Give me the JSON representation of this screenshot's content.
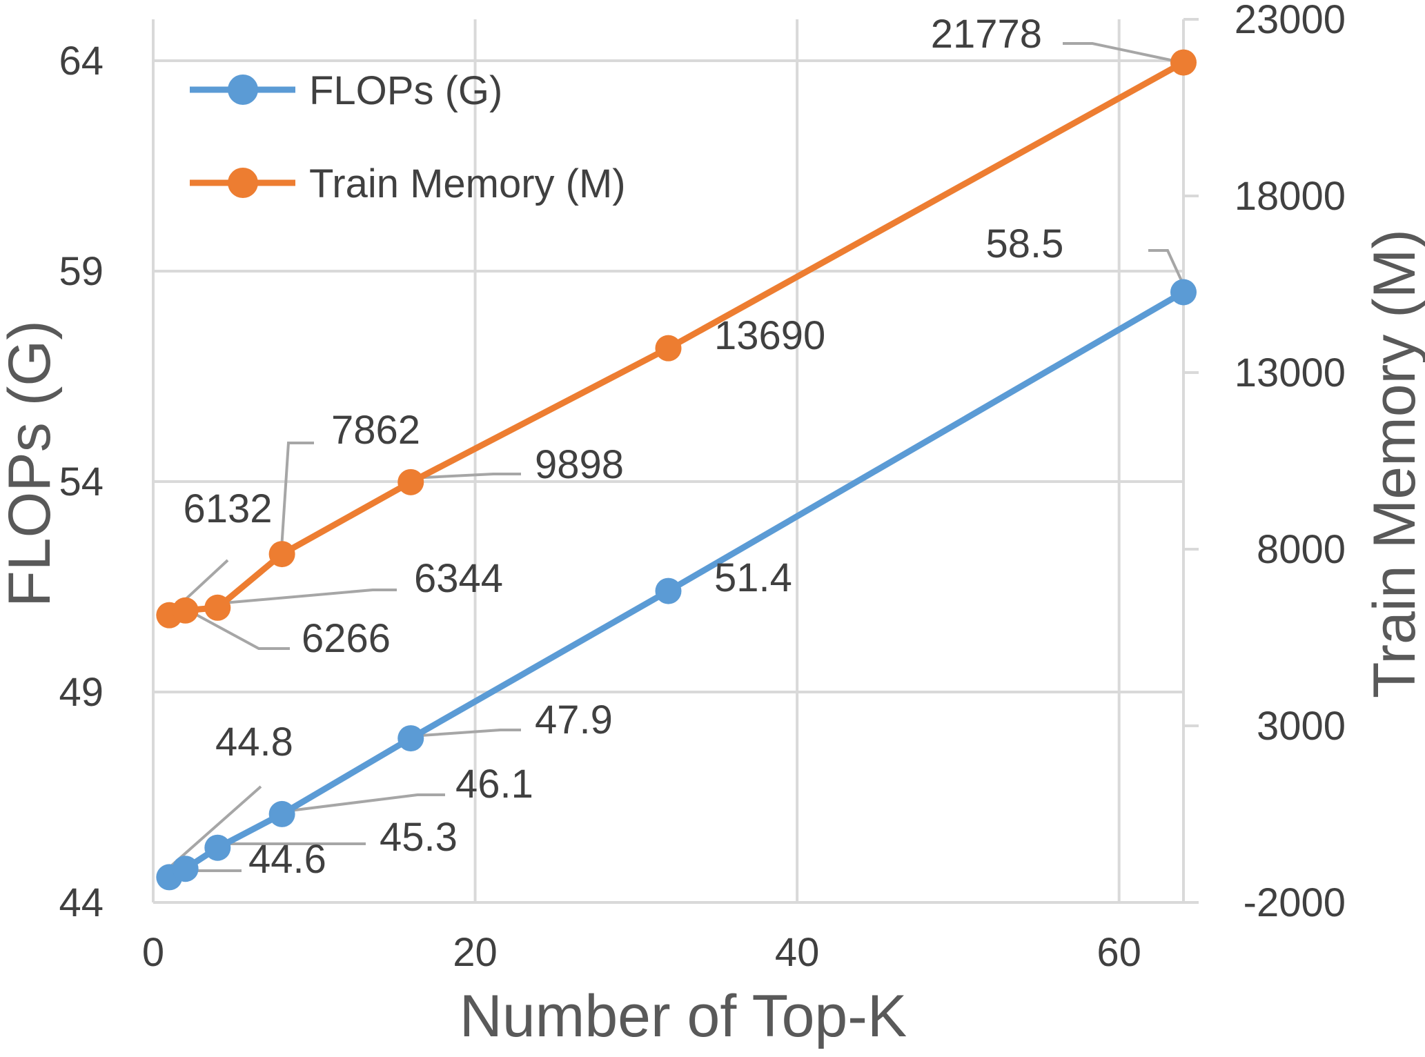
{
  "colors": {
    "flops": "#5B9BD5",
    "memory": "#ED7D31",
    "grid": "#D9D9D9",
    "leader": "#A6A6A6",
    "text": "#404040",
    "axis_title": "#595959"
  },
  "chart_data": {
    "type": "line",
    "title": "",
    "xlabel": "Number of Top-K",
    "ylabel_left": "FLOPs (G)",
    "ylabel_right": "Train Memory (M)",
    "xlim": [
      0,
      64
    ],
    "ylim_left": [
      44,
      64
    ],
    "ylim_right": [
      -2000,
      23000
    ],
    "x_ticks": [
      "0",
      "20",
      "40",
      "60"
    ],
    "y_left_ticks": [
      "44",
      "49",
      "54",
      "59",
      "64"
    ],
    "y_right_ticks": [
      "-2000",
      "3000",
      "8000",
      "13000",
      "18000",
      "23000"
    ],
    "grid": true,
    "legend_position": "top-left",
    "x": [
      1,
      2,
      4,
      8,
      16,
      32,
      64
    ],
    "series": [
      {
        "name": "FLOPs (G)",
        "axis": "left",
        "color": "#5B9BD5",
        "values": [
          44.6,
          44.8,
          45.3,
          46.1,
          47.9,
          51.4,
          58.5
        ],
        "labels": [
          "44.6",
          "44.8",
          "45.3",
          "46.1",
          "47.9",
          "51.4",
          "58.5"
        ]
      },
      {
        "name": "Train Memory (M)",
        "axis": "right",
        "color": "#ED7D31",
        "values": [
          6132,
          6266,
          6344,
          7862,
          9898,
          13690,
          21778
        ],
        "labels": [
          "6132",
          "6266",
          "6344",
          "7862",
          "9898",
          "13690",
          "21778"
        ]
      }
    ]
  }
}
